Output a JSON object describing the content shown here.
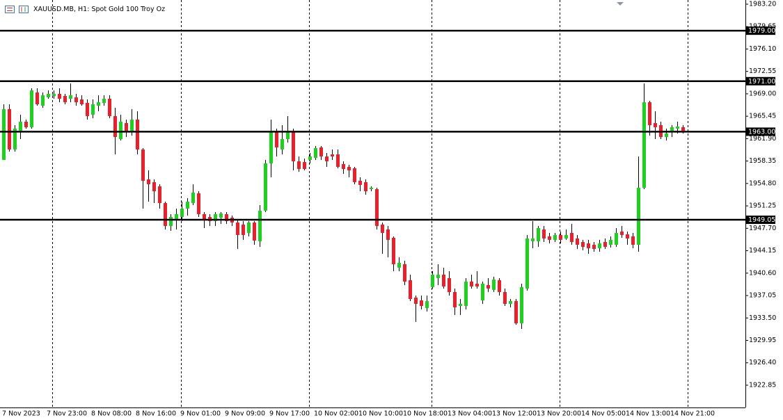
{
  "chart_data": {
    "type": "candlestick",
    "title": "XAUUSD.MB, H1:  Spot Gold 100 Troy Oz",
    "categories": [
      "7 Nov 2023",
      null,
      null,
      null,
      null,
      null,
      null,
      null,
      "7 Nov 23:00",
      null,
      null,
      null,
      null,
      null,
      null,
      null,
      "8 Nov 08:00",
      null,
      null,
      null,
      null,
      null,
      null,
      null,
      "8 Nov 16:00",
      null,
      null,
      null,
      null,
      null,
      null,
      null,
      "9 Nov 01:00",
      null,
      null,
      null,
      null,
      null,
      null,
      null,
      "9 Nov 09:00",
      null,
      null,
      null,
      null,
      null,
      null,
      null,
      "9 Nov 17:00",
      null,
      null,
      null,
      null,
      null,
      null,
      null,
      "10 Nov 02:00",
      null,
      null,
      null,
      null,
      null,
      null,
      null,
      "10 Nov 10:00",
      null,
      null,
      null,
      null,
      null,
      null,
      null,
      "10 Nov 18:00",
      null,
      null,
      null,
      null,
      null,
      null,
      null,
      "13 Nov 04:00",
      null,
      null,
      null,
      null,
      null,
      null,
      null,
      "13 Nov 12:00",
      null,
      null,
      null,
      null,
      null,
      null,
      null,
      "13 Nov 20:00",
      null,
      null,
      null,
      null,
      null,
      null,
      null,
      "14 Nov 05:00",
      null,
      null,
      null,
      null,
      null,
      null,
      null,
      "14 Nov 13:00",
      null,
      null,
      null,
      null,
      null,
      null,
      null,
      "14 Nov 21:00",
      null,
      null
    ],
    "open": [
      1958.53,
      1966.57,
      1960.18,
      1963.16,
      1964.59,
      1963.71,
      1969.21,
      1967.12,
      1968.44,
      1968.66,
      1968.99,
      1968.66,
      1968.22,
      1968.44,
      1968.11,
      1967.56,
      1965.69,
      1967.12,
      1967.56,
      1968.22,
      1965.47,
      1961.83,
      1964.37,
      1962.94,
      1964.92,
      1960.18,
      1955.45,
      1955.01,
      1954.35,
      1951.7,
      1948.07,
      1949.17,
      1949.5,
      1950.82,
      1951.7,
      1953.24,
      1949.94,
      1949.5,
      1948.84,
      1949.39,
      1949.94,
      1949.39,
      1948.62,
      1948.29,
      1946.97,
      1948.62,
      1945.64,
      1950.49,
      1957.98,
      1962.94,
      1960.18,
      1961.83,
      1962.94,
      1958.31,
      1958.2,
      1958.53,
      1958.86,
      1960.51,
      1959.08,
      1959.41,
      1959.41,
      1957.87,
      1957.43,
      1957.21,
      1955.23,
      1955.01,
      1953.9,
      1953.9,
      1948.29,
      1947.52,
      1946.2,
      1941.46,
      1942.01,
      1939.48,
      1936.72,
      1936.28,
      1935.07,
      1938.38,
      1939.81,
      1940.36,
      1939.81,
      1937.61,
      1935.4,
      1935.4,
      1939.26,
      1938.93,
      1936.28,
      1938.71,
      1937.94,
      1939.48,
      1937.61,
      1935.73,
      1936.17,
      1932.65,
      1938.16,
      1945.64,
      1945.64,
      1947.52,
      1946.42,
      1945.87,
      1946.64,
      1946.09,
      1946.97,
      1946.09,
      1945.53,
      1945.31,
      1945.09,
      1944.54,
      1945.53,
      1945.09,
      1945.09,
      1947.19,
      1946.75,
      1946.42,
      1945.09,
      1954.12,
      1967.67,
      1964.37,
      1964.04,
      1962.16,
      1962.94,
      1963.49,
      1963.71
    ],
    "high": [
      1967.34,
      1967.34,
      1964.04,
      1965.69,
      1964.92,
      1969.87,
      1969.87,
      1969.21,
      1969.54,
      1969.54,
      1969.87,
      1968.99,
      1970.64,
      1968.99,
      1968.77,
      1968.11,
      1968.11,
      1968.77,
      1968.77,
      1968.77,
      1966.79,
      1965.69,
      1964.92,
      1966.57,
      1966.24,
      1960.4,
      1956.88,
      1955.45,
      1954.68,
      1951.92,
      1949.94,
      1950.82,
      1951.92,
      1952.47,
      1954.68,
      1953.57,
      1950.27,
      1949.94,
      1950.27,
      1950.27,
      1950.27,
      1949.72,
      1949.17,
      1948.84,
      1948.84,
      1948.84,
      1951.37,
      1958.53,
      1964.92,
      1963.49,
      1964.04,
      1965.47,
      1963.49,
      1959.08,
      1958.75,
      1959.63,
      1960.73,
      1960.73,
      1959.63,
      1960.18,
      1960.18,
      1958.31,
      1957.76,
      1957.43,
      1955.78,
      1955.45,
      1954.35,
      1954.12,
      1948.62,
      1948.07,
      1946.42,
      1943.11,
      1942.56,
      1940.36,
      1937.05,
      1937.05,
      1937.05,
      1940.91,
      1942.01,
      1941.46,
      1940.91,
      1938.16,
      1936.5,
      1939.81,
      1940.36,
      1940.91,
      1939.26,
      1939.81,
      1940.03,
      1939.81,
      1938.16,
      1936.5,
      1936.5,
      1938.93,
      1946.64,
      1948.84,
      1948.07,
      1948.07,
      1946.97,
      1946.97,
      1947.19,
      1947.52,
      1948.4,
      1946.64,
      1945.87,
      1945.87,
      1945.53,
      1945.87,
      1946.09,
      1946.42,
      1947.74,
      1948.07,
      1947.19,
      1946.97,
      1959.08,
      1970.64,
      1967.89,
      1966.24,
      1964.59,
      1963.49,
      1964.04,
      1964.59,
      1964.04
    ],
    "low": [
      1958.53,
      1959.85,
      1959.85,
      1961.83,
      1963.49,
      1963.49,
      1967.12,
      1966.79,
      1968.22,
      1968.22,
      1967.67,
      1967.34,
      1967.67,
      1967.12,
      1967.12,
      1964.92,
      1965.14,
      1966.24,
      1967.12,
      1965.14,
      1959.41,
      1961.61,
      1962.16,
      1962.38,
      1959.41,
      1950.82,
      1951.92,
      1951.7,
      1950.82,
      1947.52,
      1947.3,
      1947.52,
      1948.84,
      1949.72,
      1951.37,
      1949.5,
      1947.74,
      1948.07,
      1948.07,
      1948.4,
      1948.4,
      1948.07,
      1944.43,
      1945.87,
      1946.42,
      1945.09,
      1944.76,
      1950.27,
      1955.78,
      1959.08,
      1959.41,
      1961.28,
      1956.88,
      1956.66,
      1956.88,
      1957.98,
      1958.53,
      1958.53,
      1957.43,
      1958.53,
      1957.21,
      1956.33,
      1955.78,
      1954.68,
      1953.57,
      1953.02,
      1953.57,
      1947.52,
      1943.66,
      1943.11,
      1940.91,
      1940.91,
      1938.71,
      1936.17,
      1932.87,
      1934.85,
      1934.52,
      1938.16,
      1938.71,
      1938.16,
      1937.05,
      1933.97,
      1933.97,
      1934.85,
      1938.16,
      1938.16,
      1935.73,
      1937.61,
      1937.61,
      1937.05,
      1935.4,
      1935.18,
      1932.43,
      1931.77,
      1937.83,
      1944.54,
      1944.76,
      1945.53,
      1945.31,
      1945.53,
      1945.31,
      1945.87,
      1945.09,
      1944.43,
      1944.21,
      1943.66,
      1943.99,
      1943.99,
      1944.43,
      1944.65,
      1944.76,
      1946.2,
      1945.09,
      1944.54,
      1943.99,
      1953.9,
      1962.38,
      1961.83,
      1961.83,
      1961.61,
      1962.16,
      1962.72,
      1962.72
    ],
    "close": [
      1966.57,
      1960.18,
      1963.49,
      1964.59,
      1963.71,
      1969.54,
      1967.34,
      1968.77,
      1968.99,
      1968.99,
      1968.22,
      1967.67,
      1968.77,
      1967.67,
      1967.34,
      1965.47,
      1967.34,
      1967.67,
      1968.22,
      1965.47,
      1962.16,
      1964.59,
      1962.94,
      1964.92,
      1960.18,
      1955.23,
      1954.68,
      1953.57,
      1951.7,
      1948.07,
      1949.5,
      1949.94,
      1950.82,
      1951.92,
      1953.35,
      1949.94,
      1949.06,
      1948.84,
      1949.94,
      1950.05,
      1948.84,
      1948.62,
      1946.64,
      1946.64,
      1948.62,
      1945.76,
      1950.49,
      1957.98,
      1962.94,
      1960.51,
      1961.83,
      1962.94,
      1958.31,
      1957.1,
      1957.1,
      1959.08,
      1960.4,
      1959.08,
      1958.31,
      1959.08,
      1957.43,
      1957.1,
      1956.88,
      1955.01,
      1954.57,
      1953.57,
      1954.12,
      1948.07,
      1946.97,
      1945.87,
      1942.01,
      1942.23,
      1939.26,
      1936.5,
      1935.73,
      1935.4,
      1936.17,
      1940.36,
      1940.36,
      1938.49,
      1937.61,
      1935.18,
      1935.73,
      1939.26,
      1938.49,
      1938.49,
      1938.93,
      1938.16,
      1939.59,
      1937.61,
      1935.73,
      1936.17,
      1932.65,
      1938.38,
      1946.09,
      1946.09,
      1947.74,
      1946.09,
      1945.87,
      1946.64,
      1945.87,
      1946.64,
      1945.53,
      1945.09,
      1944.76,
      1944.54,
      1944.43,
      1945.31,
      1944.76,
      1945.87,
      1946.97,
      1946.64,
      1946.09,
      1945.09,
      1954.12,
      1967.67,
      1964.04,
      1963.71,
      1962.16,
      1962.72,
      1963.71,
      1963.82,
      1963.16
    ],
    "up_color": "#1fd11f",
    "down_color": "#e8202a",
    "wick_color": "#000000",
    "ylim": [
      1919.32,
      1983.86
    ],
    "yticks": [
      {
        "value": 1983.2,
        "label": "1983.20"
      },
      1979.65,
      {
        "value": 1976.1,
        "label": "1976.10"
      },
      1972.55,
      {
        "value": 1969,
        "label": "1969.00"
      },
      1965.45,
      {
        "value": 1961.9,
        "label": "1961.90"
      },
      1958.35,
      {
        "value": 1954.8,
        "label": "1954.80"
      },
      1951.25,
      {
        "value": 1947.7,
        "label": "1947.70"
      },
      1944.15,
      {
        "value": 1940.6,
        "label": "1940.60"
      },
      1937.05,
      {
        "value": 1933.5,
        "label": "1933.50"
      },
      1929.95,
      {
        "value": 1926.4,
        "label": "1926.40"
      },
      1922.85
    ],
    "hlines": [
      {
        "value": 1979,
        "label": "1979.00"
      },
      {
        "value": 1971,
        "label": "1971.00"
      },
      {
        "value": 1963,
        "label": "1963.00"
      },
      1949.05
    ],
    "hline_color": "#000000"
  }
}
